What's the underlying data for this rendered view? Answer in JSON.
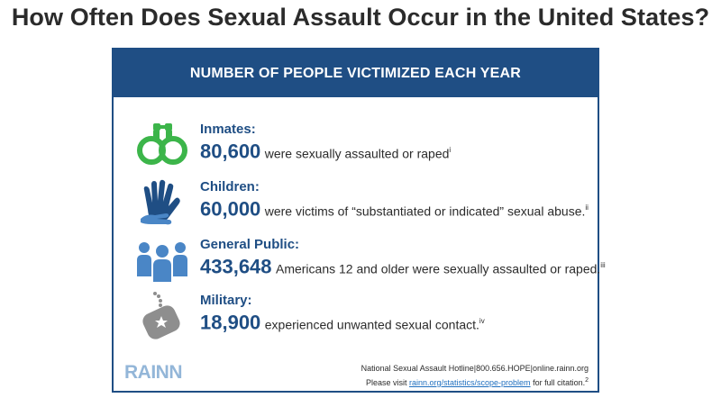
{
  "title": "How Often Does Sexual Assault Occur in the United States?",
  "card": {
    "header": "NUMBER OF PEOPLE VICTIMIZED EACH YEAR",
    "items": [
      {
        "label": "Inmates:",
        "number": "80,600",
        "text": "were sexually assaulted or raped",
        "note": "i",
        "icon": "handcuffs-icon"
      },
      {
        "label": "Children:",
        "number": "60,000",
        "text": "were victims of “substantiated or indicated” sexual abuse.",
        "note": "ii",
        "icon": "hands-icon"
      },
      {
        "label": "General Public:",
        "number": "433,648",
        "text": "Americans 12 and older were sexually assaulted or raped.",
        "note": "iii",
        "icon": "people-icon"
      },
      {
        "label": "Military:",
        "number": "18,900",
        "text": "experienced unwanted sexual contact.",
        "note": "iv",
        "icon": "dog-tag-icon"
      }
    ],
    "logo": "RAINN",
    "footer": {
      "line1": "National Sexual Assault Hotline|800.656.HOPE|online.rainn.org",
      "line2_prefix": "Please visit ",
      "link": "rainn.org/statistics/scope-problem",
      "line2_suffix": " for full citation.",
      "note": "2"
    }
  },
  "colors": {
    "navy": "#1f4e84",
    "green": "#3cb54a",
    "light_blue": "#4a86c6",
    "gray": "#8e8e8e",
    "logo": "#93b6d8"
  }
}
